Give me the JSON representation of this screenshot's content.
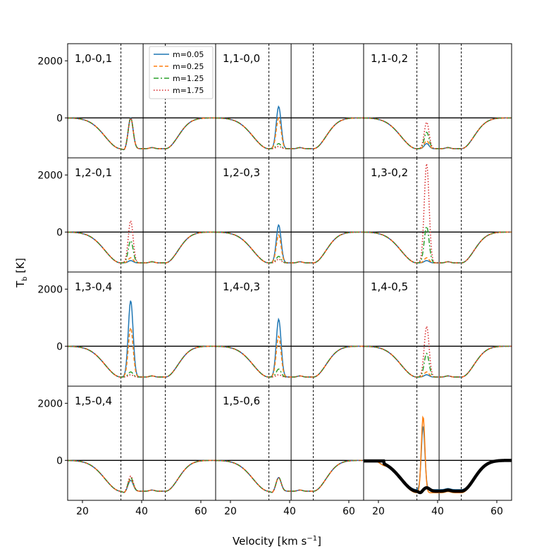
{
  "figure": {
    "xlabel": "Velocity [km s",
    "xlabel_sup": "−1",
    "xlabel_end": "]",
    "ylabel": "T",
    "ylabel_sub": "b",
    "ylabel_end": " [K]"
  },
  "legend": {
    "entries": [
      {
        "label": "m=0.05",
        "color": "#1f77b4",
        "dash": "solid"
      },
      {
        "label": "m=0.25",
        "color": "#ff7f0e",
        "dash": "dashed"
      },
      {
        "label": "m=1.25",
        "color": "#2ca02c",
        "dash": "dashdot"
      },
      {
        "label": "m=1.75",
        "color": "#d62728",
        "dash": "dotted"
      }
    ],
    "placement": "top of panel 1"
  },
  "chart_data": {
    "type": "line",
    "grid_rows": 4,
    "grid_cols": 3,
    "xlim": [
      15,
      65
    ],
    "ylim": [
      -1400,
      2600
    ],
    "xticks": [
      20,
      40,
      60
    ],
    "yticks": [
      0,
      2000
    ],
    "vlines_dashed": [
      33,
      48
    ],
    "vline_solid": 40.5,
    "hline": 0,
    "panels": [
      {
        "label": "1,0-0,1",
        "peaks": [
          0,
          0,
          0,
          0
        ],
        "dip_shape": "double"
      },
      {
        "label": "1,1-0,0",
        "peaks": [
          400,
          0,
          -900,
          -1000
        ],
        "dip_shape": "single"
      },
      {
        "label": "1,1-0,2",
        "peaks": [
          -900,
          -800,
          -500,
          -150
        ],
        "dip_shape": "single"
      },
      {
        "label": "1,2-0,1",
        "peaks": [
          -1000,
          -900,
          -300,
          400
        ],
        "dip_shape": "single"
      },
      {
        "label": "1,2-0,3",
        "peaks": [
          250,
          -100,
          -850,
          -950
        ],
        "dip_shape": "single"
      },
      {
        "label": "1,3-0,2",
        "peaks": [
          -1000,
          -900,
          200,
          2400
        ],
        "dip_shape": "single"
      },
      {
        "label": "1,3-0,4",
        "peaks": [
          1600,
          650,
          -900,
          -1000
        ],
        "dip_shape": "single"
      },
      {
        "label": "1,4-0,3",
        "peaks": [
          950,
          350,
          -800,
          -1000
        ],
        "dip_shape": "single"
      },
      {
        "label": "1,4-0,5",
        "peaks": [
          -1000,
          -900,
          -250,
          700
        ],
        "dip_shape": "single"
      },
      {
        "label": "1,5-0,4",
        "peaks": [
          -700,
          -650,
          -600,
          -550
        ],
        "dip_shape": "double"
      },
      {
        "label": "1,5-0,6",
        "peaks": [
          -600,
          -600,
          -600,
          -600
        ],
        "dip_shape": "double"
      },
      {
        "label": "",
        "peaks": [
          1150,
          1600
        ],
        "dip_shape": "observed"
      }
    ],
    "observed_colors": [
      "#1f77b4",
      "#ff7f0e",
      "#000000"
    ]
  }
}
